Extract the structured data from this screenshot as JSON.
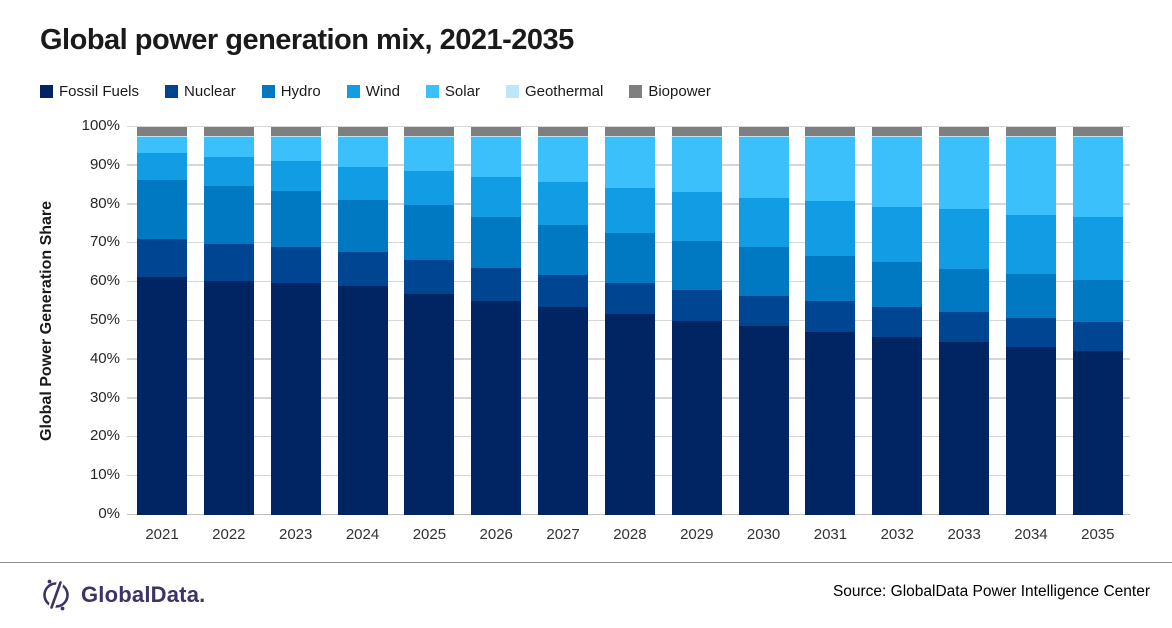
{
  "title": "Global power generation mix, 2021-2035",
  "legend": [
    {
      "name": "Fossil Fuels",
      "color": "#012563"
    },
    {
      "name": "Nuclear",
      "color": "#004591"
    },
    {
      "name": "Hydro",
      "color": "#0078C2"
    },
    {
      "name": "Wind",
      "color": "#129CE4"
    },
    {
      "name": "Solar",
      "color": "#3BC0FB"
    },
    {
      "name": "Geothermal",
      "color": "#BCE7FB"
    },
    {
      "name": "Biopower",
      "color": "#7F7F7F"
    }
  ],
  "chart_data": {
    "type": "bar",
    "subtype": "stacked-100-percent",
    "title": "Global power generation mix, 2021-2035",
    "xlabel": "",
    "ylabel": "Global Power Generation Share",
    "ylim": [
      0,
      100
    ],
    "unit": "%",
    "grid": true,
    "legend_position": "top",
    "y_ticks": [
      "0%",
      "10%",
      "20%",
      "30%",
      "40%",
      "50%",
      "60%",
      "70%",
      "80%",
      "90%",
      "100%"
    ],
    "categories": [
      "2021",
      "2022",
      "2023",
      "2024",
      "2025",
      "2026",
      "2027",
      "2028",
      "2029",
      "2030",
      "2031",
      "2032",
      "2033",
      "2034",
      "2035"
    ],
    "series": [
      {
        "name": "Fossil Fuels",
        "color": "#012563",
        "values": [
          61.4,
          60.4,
          59.8,
          59.1,
          57.0,
          55.2,
          53.5,
          51.8,
          50.0,
          48.6,
          47.2,
          45.9,
          44.6,
          43.2,
          42.2
        ]
      },
      {
        "name": "Nuclear",
        "color": "#004591",
        "values": [
          9.8,
          9.5,
          9.3,
          8.7,
          8.6,
          8.5,
          8.3,
          8.0,
          8.1,
          7.8,
          7.9,
          7.7,
          7.7,
          7.5,
          7.6
        ]
      },
      {
        "name": "Hydro",
        "color": "#0078C2",
        "values": [
          15.2,
          14.9,
          14.3,
          13.5,
          14.3,
          13.0,
          13.0,
          12.8,
          12.5,
          12.7,
          11.7,
          11.7,
          11.0,
          11.5,
          10.7
        ]
      },
      {
        "name": "Wind",
        "color": "#129CE4",
        "values": [
          7.0,
          7.5,
          7.8,
          8.4,
          8.7,
          10.4,
          11.0,
          11.6,
          12.6,
          12.6,
          14.2,
          14.2,
          15.6,
          15.2,
          16.4
        ]
      },
      {
        "name": "Solar",
        "color": "#3BC0FB",
        "values": [
          4.0,
          5.1,
          6.2,
          7.7,
          8.8,
          10.3,
          11.6,
          13.2,
          14.2,
          15.7,
          16.4,
          17.9,
          18.5,
          20.0,
          20.5
        ]
      },
      {
        "name": "Geothermal",
        "color": "#BCE7FB",
        "values": [
          0.3,
          0.3,
          0.3,
          0.3,
          0.3,
          0.3,
          0.3,
          0.3,
          0.3,
          0.3,
          0.3,
          0.3,
          0.3,
          0.3,
          0.3
        ]
      },
      {
        "name": "Biopower",
        "color": "#7F7F7F",
        "values": [
          2.3,
          2.3,
          2.3,
          2.3,
          2.3,
          2.3,
          2.3,
          2.3,
          2.3,
          2.3,
          2.3,
          2.3,
          2.3,
          2.3,
          2.3
        ]
      }
    ]
  },
  "footer": {
    "logo_text": "GlobalData.",
    "source": "Source: GlobalData Power Intelligence Center"
  }
}
